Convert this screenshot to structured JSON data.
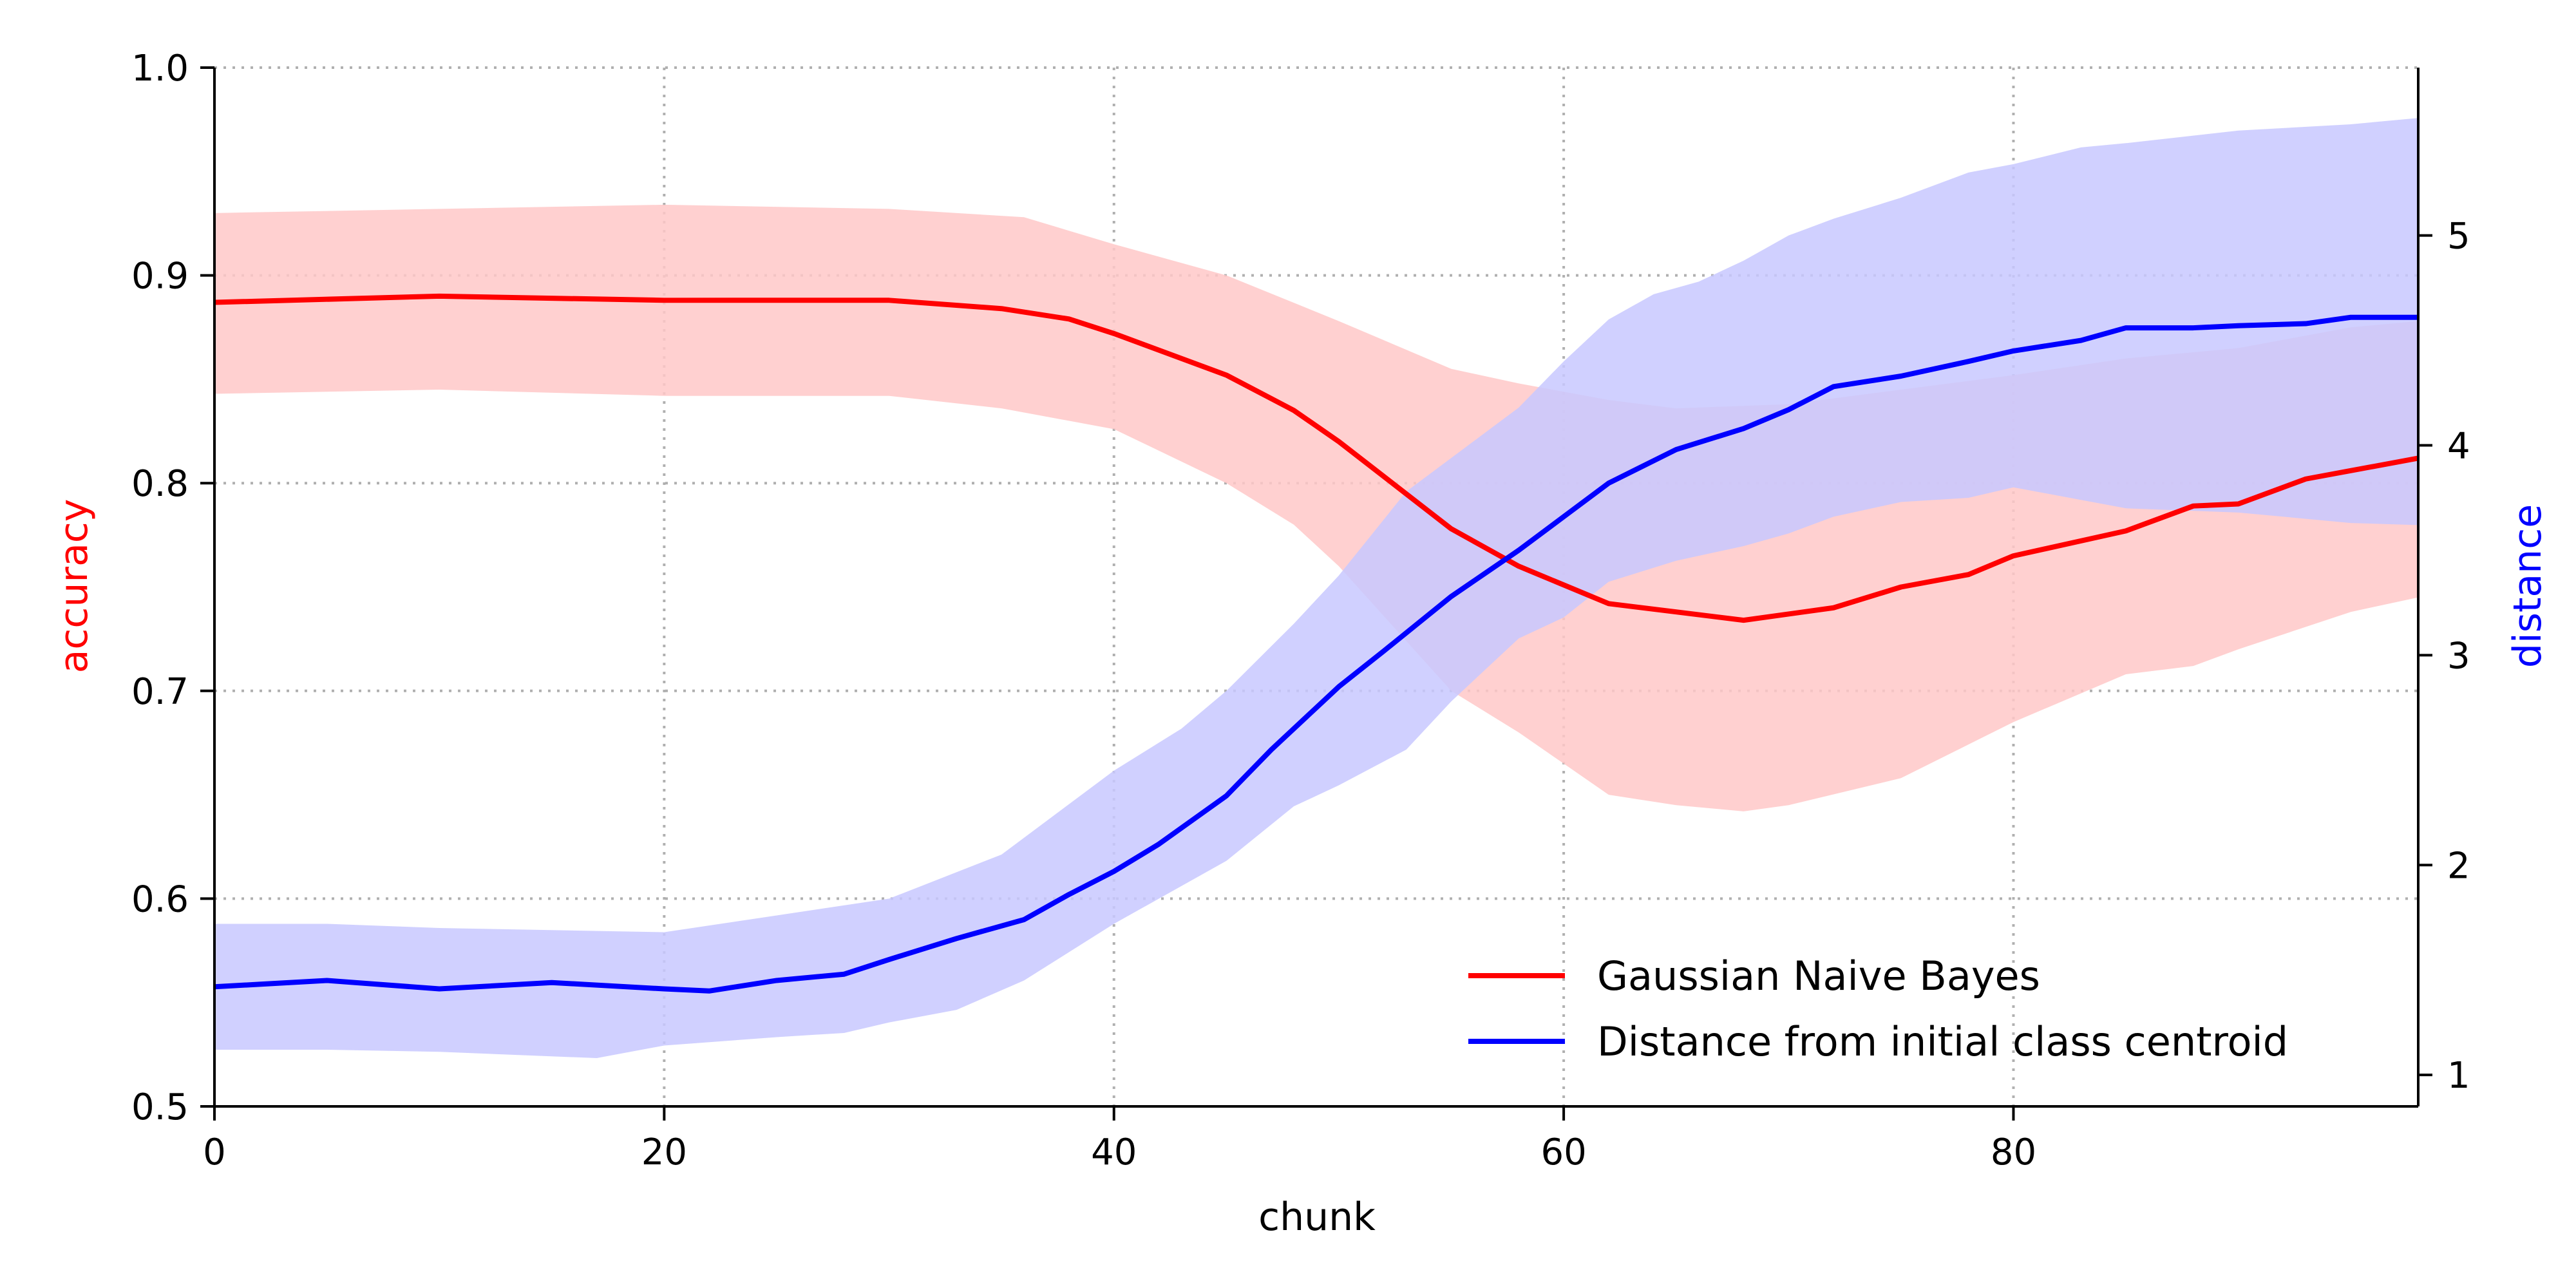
{
  "chart_data": {
    "type": "line",
    "xlabel": "chunk",
    "ylabel": "accuracy",
    "y2label": "distance",
    "xlim": [
      0,
      98
    ],
    "ylim": [
      0.5,
      1.0
    ],
    "y2lim": [
      0.85,
      5.8
    ],
    "x_ticks": [
      0,
      20,
      40,
      60,
      80
    ],
    "y_ticks": [
      0.5,
      0.6,
      0.7,
      0.8,
      0.9,
      1.0
    ],
    "y2_ticks": [
      1,
      2,
      3,
      4,
      5
    ],
    "grid": true,
    "legend_position": "lower-right",
    "series": [
      {
        "name": "Gaussian Naive Bayes",
        "axis": "left",
        "color": "#ff0000",
        "band_color": "#ffc8c8",
        "points": [
          [
            0,
            0.887
          ],
          [
            10,
            0.89
          ],
          [
            20,
            0.888
          ],
          [
            30,
            0.888
          ],
          [
            35,
            0.884
          ],
          [
            38,
            0.879
          ],
          [
            40,
            0.872
          ],
          [
            45,
            0.852
          ],
          [
            48,
            0.835
          ],
          [
            50,
            0.82
          ],
          [
            55,
            0.778
          ],
          [
            58,
            0.76
          ],
          [
            62,
            0.742
          ],
          [
            65,
            0.738
          ],
          [
            68,
            0.734
          ],
          [
            70,
            0.737
          ],
          [
            72,
            0.74
          ],
          [
            75,
            0.75
          ],
          [
            78,
            0.756
          ],
          [
            80,
            0.765
          ],
          [
            85,
            0.777
          ],
          [
            88,
            0.789
          ],
          [
            90,
            0.79
          ],
          [
            93,
            0.802
          ],
          [
            95,
            0.806
          ],
          [
            98,
            0.812
          ]
        ],
        "upper": [
          [
            0,
            0.93
          ],
          [
            10,
            0.932
          ],
          [
            20,
            0.934
          ],
          [
            30,
            0.932
          ],
          [
            36,
            0.928
          ],
          [
            40,
            0.915
          ],
          [
            45,
            0.9
          ],
          [
            50,
            0.878
          ],
          [
            55,
            0.855
          ],
          [
            58,
            0.848
          ],
          [
            62,
            0.84
          ],
          [
            65,
            0.836
          ],
          [
            70,
            0.838
          ],
          [
            75,
            0.845
          ],
          [
            80,
            0.852
          ],
          [
            85,
            0.86
          ],
          [
            90,
            0.865
          ],
          [
            95,
            0.875
          ],
          [
            98,
            0.878
          ]
        ],
        "lower": [
          [
            0,
            0.843
          ],
          [
            10,
            0.845
          ],
          [
            20,
            0.842
          ],
          [
            30,
            0.842
          ],
          [
            35,
            0.836
          ],
          [
            40,
            0.826
          ],
          [
            45,
            0.8
          ],
          [
            48,
            0.78
          ],
          [
            50,
            0.76
          ],
          [
            55,
            0.7
          ],
          [
            58,
            0.68
          ],
          [
            62,
            0.65
          ],
          [
            65,
            0.645
          ],
          [
            68,
            0.642
          ],
          [
            70,
            0.645
          ],
          [
            75,
            0.658
          ],
          [
            80,
            0.685
          ],
          [
            85,
            0.708
          ],
          [
            88,
            0.712
          ],
          [
            90,
            0.72
          ],
          [
            95,
            0.738
          ],
          [
            98,
            0.745
          ]
        ]
      },
      {
        "name": "Distance from initial class centroid",
        "axis": "right",
        "color": "#0000ff",
        "band_color": "#c8c8ff",
        "points": [
          [
            0,
            1.42
          ],
          [
            5,
            1.45
          ],
          [
            10,
            1.41
          ],
          [
            15,
            1.44
          ],
          [
            20,
            1.41
          ],
          [
            22,
            1.4
          ],
          [
            25,
            1.45
          ],
          [
            28,
            1.48
          ],
          [
            30,
            1.55
          ],
          [
            33,
            1.65
          ],
          [
            36,
            1.74
          ],
          [
            38,
            1.86
          ],
          [
            40,
            1.97
          ],
          [
            42,
            2.1
          ],
          [
            45,
            2.33
          ],
          [
            47,
            2.55
          ],
          [
            50,
            2.85
          ],
          [
            52,
            3.02
          ],
          [
            55,
            3.28
          ],
          [
            58,
            3.5
          ],
          [
            60,
            3.66
          ],
          [
            62,
            3.82
          ],
          [
            65,
            3.98
          ],
          [
            68,
            4.08
          ],
          [
            70,
            4.17
          ],
          [
            72,
            4.28
          ],
          [
            75,
            4.33
          ],
          [
            78,
            4.4
          ],
          [
            80,
            4.45
          ],
          [
            83,
            4.5
          ],
          [
            85,
            4.56
          ],
          [
            88,
            4.56
          ],
          [
            90,
            4.57
          ],
          [
            93,
            4.58
          ],
          [
            95,
            4.61
          ],
          [
            98,
            4.61
          ]
        ],
        "upper": [
          [
            0,
            1.72
          ],
          [
            5,
            1.72
          ],
          [
            10,
            1.7
          ],
          [
            20,
            1.68
          ],
          [
            25,
            1.76
          ],
          [
            30,
            1.84
          ],
          [
            35,
            2.05
          ],
          [
            40,
            2.45
          ],
          [
            43,
            2.65
          ],
          [
            45,
            2.83
          ],
          [
            48,
            3.15
          ],
          [
            50,
            3.38
          ],
          [
            53,
            3.78
          ],
          [
            55,
            3.94
          ],
          [
            58,
            4.18
          ],
          [
            60,
            4.4
          ],
          [
            62,
            4.6
          ],
          [
            64,
            4.72
          ],
          [
            66,
            4.78
          ],
          [
            68,
            4.88
          ],
          [
            70,
            5.0
          ],
          [
            72,
            5.08
          ],
          [
            75,
            5.18
          ],
          [
            78,
            5.3
          ],
          [
            80,
            5.34
          ],
          [
            83,
            5.42
          ],
          [
            85,
            5.44
          ],
          [
            90,
            5.5
          ],
          [
            95,
            5.53
          ],
          [
            98,
            5.56
          ]
        ],
        "lower": [
          [
            0,
            1.12
          ],
          [
            5,
            1.12
          ],
          [
            10,
            1.11
          ],
          [
            17,
            1.08
          ],
          [
            20,
            1.14
          ],
          [
            25,
            1.18
          ],
          [
            28,
            1.2
          ],
          [
            30,
            1.25
          ],
          [
            33,
            1.31
          ],
          [
            36,
            1.45
          ],
          [
            40,
            1.72
          ],
          [
            45,
            2.02
          ],
          [
            48,
            2.28
          ],
          [
            50,
            2.38
          ],
          [
            53,
            2.55
          ],
          [
            55,
            2.78
          ],
          [
            58,
            3.08
          ],
          [
            60,
            3.18
          ],
          [
            62,
            3.35
          ],
          [
            65,
            3.45
          ],
          [
            68,
            3.52
          ],
          [
            70,
            3.58
          ],
          [
            72,
            3.66
          ],
          [
            75,
            3.73
          ],
          [
            78,
            3.75
          ],
          [
            80,
            3.8
          ],
          [
            83,
            3.74
          ],
          [
            85,
            3.7
          ],
          [
            90,
            3.68
          ],
          [
            95,
            3.63
          ],
          [
            98,
            3.62
          ]
        ]
      }
    ]
  }
}
